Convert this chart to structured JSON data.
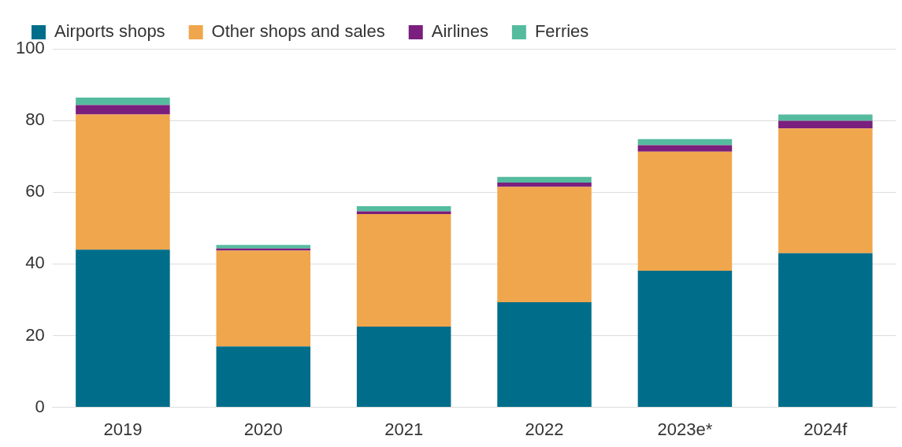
{
  "chart_data": {
    "type": "bar",
    "stacked": true,
    "categories": [
      "2019",
      "2020",
      "2021",
      "2022",
      "2023e*",
      "2024f"
    ],
    "series": [
      {
        "name": "Airports shops",
        "color": "#006e8a",
        "values": [
          44.0,
          17.0,
          22.5,
          29.3,
          38.1,
          43.0
        ]
      },
      {
        "name": "Other shops and sales",
        "color": "#f0a64c",
        "values": [
          37.7,
          26.7,
          31.4,
          32.2,
          33.2,
          34.8
        ]
      },
      {
        "name": "Airlines",
        "color": "#7a1f7d",
        "values": [
          2.6,
          0.6,
          0.8,
          1.2,
          1.8,
          2.1
        ]
      },
      {
        "name": "Ferries",
        "color": "#55bb9f",
        "values": [
          2.1,
          1.0,
          1.4,
          1.6,
          1.7,
          1.8
        ]
      }
    ],
    "ylim": [
      0,
      100
    ],
    "yticks": [
      0,
      20,
      40,
      60,
      80,
      100
    ],
    "grid": "y",
    "legend": "top"
  }
}
